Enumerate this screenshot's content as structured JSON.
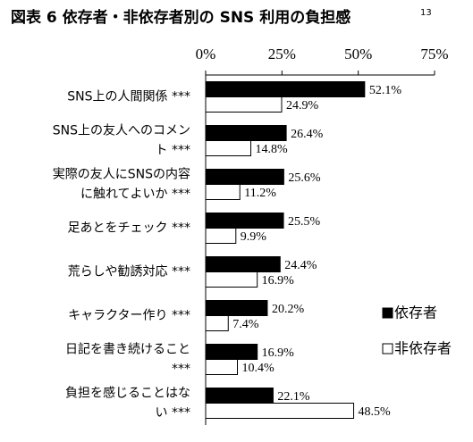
{
  "chart_data": {
    "type": "bar",
    "orientation": "horizontal",
    "title": "図表 6 依存者・非依存者別の SNS 利用の負担感",
    "title_superscript": "13",
    "categories": [
      [
        "SNS上の人間関係 ***"
      ],
      [
        "SNS上の友人へのコメン",
        "ト ***"
      ],
      [
        "実際の友人にSNSの内容",
        "に触れてよいか ***"
      ],
      [
        "足あとをチェック ***"
      ],
      [
        "荒らしや勧誘対応 ***"
      ],
      [
        "キャラクター作り ***"
      ],
      [
        "日記を書き続けること",
        "***"
      ],
      [
        "負担を感じることはな",
        "い ***"
      ]
    ],
    "series": [
      {
        "name": "依存者",
        "color": "#000000",
        "values": [
          52.1,
          26.4,
          25.6,
          25.5,
          24.4,
          20.2,
          16.9,
          22.1
        ],
        "value_labels": [
          "52.1%",
          "26.4%",
          "25.6%",
          "25.5%",
          "24.4%",
          "20.2%",
          "16.9%",
          "22.1%"
        ]
      },
      {
        "name": "非依存者",
        "color": "#ffffff",
        "values": [
          24.9,
          14.8,
          11.2,
          9.9,
          16.9,
          7.4,
          10.4,
          48.5
        ],
        "value_labels": [
          "24.9%",
          "14.8%",
          "11.2%",
          "9.9%",
          "16.9%",
          "7.4%",
          "10.4%",
          "48.5%"
        ]
      }
    ],
    "xlim": [
      0,
      75
    ],
    "xticks": [
      {
        "value": 0,
        "label": "0%"
      },
      {
        "value": 25,
        "label": "25%"
      },
      {
        "value": 50,
        "label": "50%"
      },
      {
        "value": 75,
        "label": "75%"
      }
    ],
    "grid": false,
    "legend": "right"
  }
}
